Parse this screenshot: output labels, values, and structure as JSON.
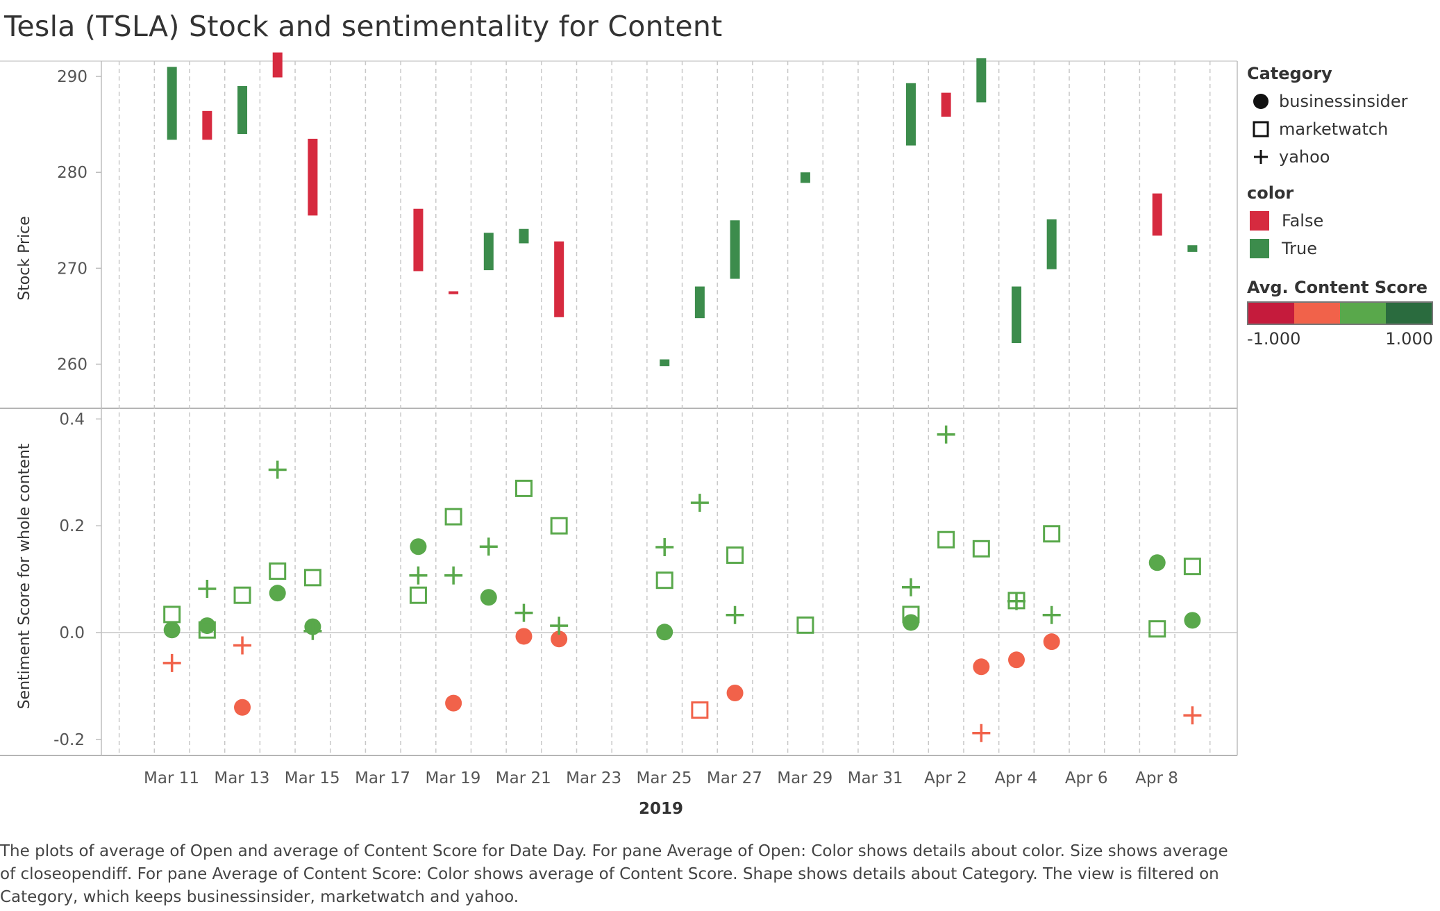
{
  "title": "Tesla (TSLA) Stock and sentimentality for Content",
  "caption": "The plots of average of Open and average of Content Score for Date Day.  For pane Average of Open:  Color shows details about color.  Size shows average of closeopendiff.  For pane Average of Content Score:  Color shows average of Content Score.  Shape shows details about Category. The view is filtered on Category, which keeps businessinsider, marketwatch and yahoo.",
  "colors": {
    "false": "#d62a3f",
    "true": "#3c8c4c",
    "neg_dark": "#c51b3c",
    "neg_light": "#f1624a",
    "pos_light": "#59a84b",
    "pos_dark": "#2a6b3e",
    "grid": "#c8c8c8"
  },
  "legend": {
    "category_title": "Category",
    "categories": [
      {
        "label": "businessinsider",
        "shape": "circle"
      },
      {
        "label": "marketwatch",
        "shape": "square"
      },
      {
        "label": "yahoo",
        "shape": "plus"
      }
    ],
    "color_title": "color",
    "colors": [
      {
        "label": "False",
        "color": "#d62a3f"
      },
      {
        "label": "True",
        "color": "#3c8c4c"
      }
    ],
    "score_title": "Avg. Content Score",
    "score_min": "-1.000",
    "score_max": "1.000",
    "score_colors": [
      "#c51b3c",
      "#f1624a",
      "#59a84b",
      "#2a6b3e"
    ]
  },
  "chart_data": {
    "type": "scatter",
    "xlabel": "2019",
    "x_tick_labels": [
      "Mar 11",
      "Mar 13",
      "Mar 15",
      "Mar 17",
      "Mar 19",
      "Mar 21",
      "Mar 23",
      "Mar 25",
      "Mar 27",
      "Mar 29",
      "Mar 31",
      "Apr 2",
      "Apr 4",
      "Apr 6",
      "Apr 8"
    ],
    "x_dates": [
      "2019-03-09",
      "2019-03-10",
      "2019-03-11",
      "2019-03-12",
      "2019-03-13",
      "2019-03-14",
      "2019-03-15",
      "2019-03-16",
      "2019-03-17",
      "2019-03-18",
      "2019-03-19",
      "2019-03-20",
      "2019-03-21",
      "2019-03-22",
      "2019-03-23",
      "2019-03-24",
      "2019-03-25",
      "2019-03-26",
      "2019-03-27",
      "2019-03-28",
      "2019-03-29",
      "2019-03-30",
      "2019-03-31",
      "2019-04-01",
      "2019-04-02",
      "2019-04-03",
      "2019-04-04",
      "2019-04-05",
      "2019-04-06",
      "2019-04-07",
      "2019-04-08",
      "2019-04-09"
    ],
    "stock": {
      "ylabel": "Stock Price",
      "ylim": [
        255.4,
        291.6
      ],
      "yticks": [
        260,
        270,
        280,
        290
      ],
      "bars": [
        {
          "date": "2019-03-11",
          "low": 283.4,
          "high": 291.0,
          "up": true
        },
        {
          "date": "2019-03-12",
          "low": 283.4,
          "high": 286.4,
          "up": false
        },
        {
          "date": "2019-03-13",
          "low": 284.0,
          "high": 289.0,
          "up": true
        },
        {
          "date": "2019-03-14",
          "low": 289.9,
          "high": 292.5,
          "up": false
        },
        {
          "date": "2019-03-15",
          "low": 275.5,
          "high": 283.5,
          "up": false
        },
        {
          "date": "2019-03-18",
          "low": 269.7,
          "high": 276.2,
          "up": false
        },
        {
          "date": "2019-03-19",
          "low": 267.3,
          "high": 267.6,
          "up": false
        },
        {
          "date": "2019-03-20",
          "low": 269.8,
          "high": 273.7,
          "up": true
        },
        {
          "date": "2019-03-21",
          "low": 272.6,
          "high": 274.1,
          "up": true
        },
        {
          "date": "2019-03-22",
          "low": 264.9,
          "high": 272.8,
          "up": false
        },
        {
          "date": "2019-03-25",
          "low": 259.8,
          "high": 260.5,
          "up": true
        },
        {
          "date": "2019-03-26",
          "low": 264.8,
          "high": 268.1,
          "up": true
        },
        {
          "date": "2019-03-27",
          "low": 268.9,
          "high": 275.0,
          "up": true
        },
        {
          "date": "2019-03-29",
          "low": 278.9,
          "high": 280.0,
          "up": true
        },
        {
          "date": "2019-04-01",
          "low": 282.8,
          "high": 289.3,
          "up": true
        },
        {
          "date": "2019-04-02",
          "low": 285.8,
          "high": 288.3,
          "up": false
        },
        {
          "date": "2019-04-03",
          "low": 287.3,
          "high": 291.9,
          "up": true
        },
        {
          "date": "2019-04-04",
          "low": 262.2,
          "high": 268.1,
          "up": true
        },
        {
          "date": "2019-04-05",
          "low": 269.9,
          "high": 275.1,
          "up": true
        },
        {
          "date": "2019-04-08",
          "low": 273.4,
          "high": 277.8,
          "up": false
        },
        {
          "date": "2019-04-09",
          "low": 271.7,
          "high": 272.4,
          "up": true
        }
      ]
    },
    "sentiment": {
      "ylabel": "Sentiment Score for whole content",
      "ylim": [
        -0.23,
        0.42
      ],
      "yticks": [
        -0.2,
        0.0,
        0.2,
        0.4
      ],
      "ytick_labels": [
        "-0.2",
        "0.0",
        "0.2",
        "0.4"
      ],
      "series": [
        {
          "name": "businessinsider",
          "shape": "circle",
          "points": [
            {
              "date": "2019-03-11",
              "y": 0.005
            },
            {
              "date": "2019-03-12",
              "y": 0.013
            },
            {
              "date": "2019-03-13",
              "y": -0.14
            },
            {
              "date": "2019-03-14",
              "y": 0.074
            },
            {
              "date": "2019-03-15",
              "y": 0.011
            },
            {
              "date": "2019-03-18",
              "y": 0.161
            },
            {
              "date": "2019-03-19",
              "y": -0.132
            },
            {
              "date": "2019-03-20",
              "y": 0.066
            },
            {
              "date": "2019-03-21",
              "y": -0.007
            },
            {
              "date": "2019-03-22",
              "y": -0.012
            },
            {
              "date": "2019-03-25",
              "y": 0.001
            },
            {
              "date": "2019-03-27",
              "y": -0.113
            },
            {
              "date": "2019-04-01",
              "y": 0.019
            },
            {
              "date": "2019-04-03",
              "y": -0.064
            },
            {
              "date": "2019-04-04",
              "y": -0.051
            },
            {
              "date": "2019-04-05",
              "y": -0.017
            },
            {
              "date": "2019-04-08",
              "y": 0.131
            },
            {
              "date": "2019-04-09",
              "y": 0.023
            }
          ]
        },
        {
          "name": "marketwatch",
          "shape": "square",
          "points": [
            {
              "date": "2019-03-11",
              "y": 0.034
            },
            {
              "date": "2019-03-12",
              "y": 0.005
            },
            {
              "date": "2019-03-13",
              "y": 0.07
            },
            {
              "date": "2019-03-14",
              "y": 0.115
            },
            {
              "date": "2019-03-15",
              "y": 0.103
            },
            {
              "date": "2019-03-18",
              "y": 0.07
            },
            {
              "date": "2019-03-19",
              "y": 0.217
            },
            {
              "date": "2019-03-21",
              "y": 0.27
            },
            {
              "date": "2019-03-22",
              "y": 0.2
            },
            {
              "date": "2019-03-25",
              "y": 0.098
            },
            {
              "date": "2019-03-26",
              "y": -0.145
            },
            {
              "date": "2019-03-27",
              "y": 0.145
            },
            {
              "date": "2019-03-29",
              "y": 0.014
            },
            {
              "date": "2019-04-01",
              "y": 0.034
            },
            {
              "date": "2019-04-02",
              "y": 0.174
            },
            {
              "date": "2019-04-03",
              "y": 0.157
            },
            {
              "date": "2019-04-04",
              "y": 0.06
            },
            {
              "date": "2019-04-05",
              "y": 0.185
            },
            {
              "date": "2019-04-08",
              "y": 0.007
            },
            {
              "date": "2019-04-09",
              "y": 0.124
            }
          ]
        },
        {
          "name": "yahoo",
          "shape": "plus",
          "points": [
            {
              "date": "2019-03-11",
              "y": -0.057
            },
            {
              "date": "2019-03-12",
              "y": 0.082
            },
            {
              "date": "2019-03-13",
              "y": -0.024
            },
            {
              "date": "2019-03-14",
              "y": 0.305
            },
            {
              "date": "2019-03-15",
              "y": 0.003
            },
            {
              "date": "2019-03-18",
              "y": 0.107
            },
            {
              "date": "2019-03-19",
              "y": 0.107
            },
            {
              "date": "2019-03-20",
              "y": 0.161
            },
            {
              "date": "2019-03-21",
              "y": 0.037
            },
            {
              "date": "2019-03-22",
              "y": 0.013
            },
            {
              "date": "2019-03-25",
              "y": 0.16
            },
            {
              "date": "2019-03-26",
              "y": 0.243
            },
            {
              "date": "2019-03-27",
              "y": 0.033
            },
            {
              "date": "2019-04-01",
              "y": 0.085
            },
            {
              "date": "2019-04-02",
              "y": 0.371
            },
            {
              "date": "2019-04-03",
              "y": -0.188
            },
            {
              "date": "2019-04-04",
              "y": 0.059
            },
            {
              "date": "2019-04-05",
              "y": 0.033
            },
            {
              "date": "2019-04-09",
              "y": -0.155
            }
          ]
        }
      ]
    }
  }
}
